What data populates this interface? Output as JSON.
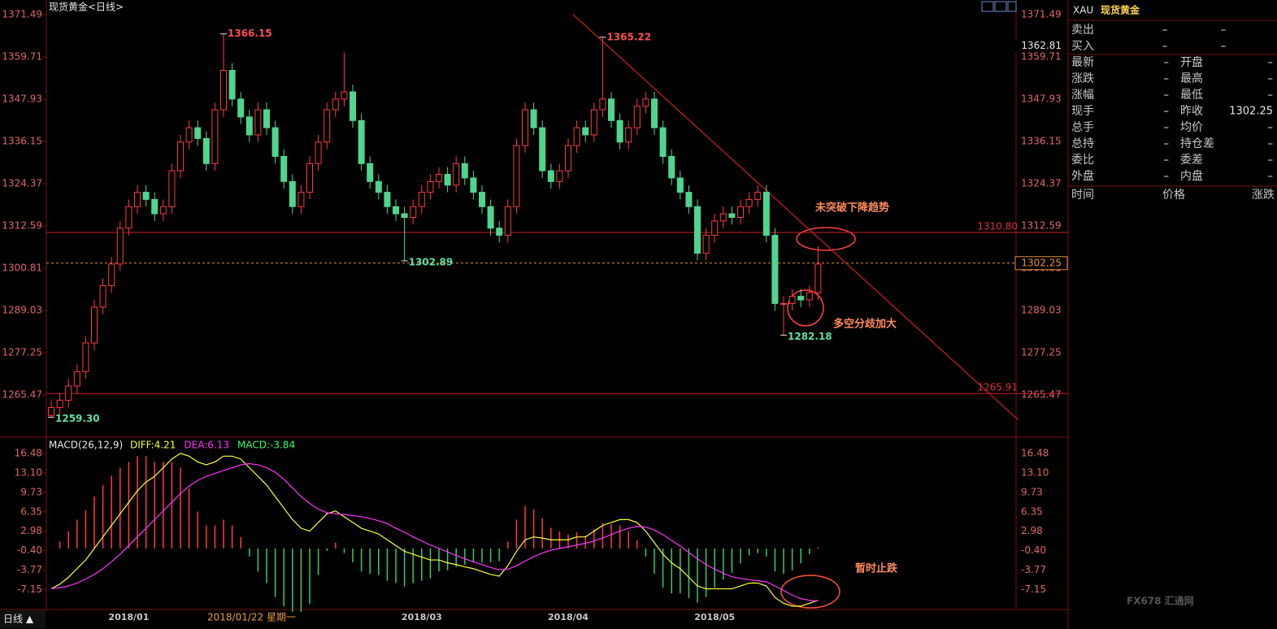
{
  "chart_data": [
    {
      "type": "candlestick",
      "title": "现货黄金<日线>",
      "categories": [
        null,
        null,
        null,
        null,
        null,
        null,
        null,
        null,
        null,
        "2018/01",
        null,
        null,
        null,
        null,
        null,
        null,
        null,
        null,
        null,
        null,
        null,
        null,
        null,
        null,
        null,
        null,
        null,
        null,
        null,
        null,
        null,
        null,
        null,
        null,
        null,
        null,
        null,
        null,
        null,
        null,
        null,
        null,
        null,
        "2018/03",
        null,
        null,
        null,
        null,
        null,
        null,
        null,
        null,
        null,
        null,
        null,
        null,
        null,
        null,
        null,
        null,
        "2018/04",
        null,
        null,
        null,
        null,
        null,
        null,
        null,
        null,
        null,
        null,
        null,
        null,
        null,
        null,
        null,
        null,
        "2018/05",
        null,
        null,
        null,
        null,
        null,
        null,
        null,
        null,
        null,
        null,
        null,
        null
      ],
      "cursor_date": "2018/01/22 星期一",
      "open": [
        1259.8,
        1262,
        1264,
        1268,
        1272,
        1280,
        1290,
        1296,
        1302,
        1312,
        1318,
        1322,
        1320,
        1316,
        1318,
        1328,
        1336,
        1340,
        1337,
        1330,
        1345,
        1356,
        1348,
        1343,
        1338,
        1345,
        1340,
        1332,
        1325,
        1318,
        1322,
        1330,
        1336,
        1345,
        1348,
        1350,
        1342,
        1330,
        1325,
        1322,
        1318,
        1316,
        1315,
        1318,
        1322,
        1325,
        1327,
        1324,
        1330,
        1326,
        1322,
        1318,
        1312,
        1310,
        1318,
        1335,
        1345,
        1340,
        1328,
        1325,
        1328,
        1335,
        1340,
        1338,
        1345,
        1348,
        1342,
        1336,
        1340,
        1346,
        1348,
        1340,
        1332,
        1326,
        1322,
        1318,
        1305,
        1310,
        1314,
        1316,
        1315,
        1318,
        1320,
        1322,
        1310,
        1291,
        1291,
        1293,
        1292,
        1294
      ],
      "high": [
        1264,
        1266,
        1270,
        1274,
        1282,
        1292,
        1298,
        1304,
        1314,
        1320,
        1324,
        1324,
        1322,
        1320,
        1330,
        1338,
        1342,
        1342,
        1339,
        1347,
        1366.15,
        1358,
        1350,
        1345,
        1347,
        1347,
        1342,
        1334,
        1327,
        1324,
        1332,
        1338,
        1347,
        1350,
        1361,
        1352,
        1344,
        1332,
        1327,
        1324,
        1320,
        1318,
        1320,
        1324,
        1327,
        1329,
        1329,
        1332,
        1332,
        1328,
        1324,
        1320,
        1314,
        1320,
        1337,
        1347,
        1347,
        1342,
        1330,
        1330,
        1337,
        1342,
        1342,
        1347,
        1365.22,
        1350,
        1344,
        1342,
        1348,
        1350,
        1350,
        1342,
        1334,
        1328,
        1324,
        1320,
        1312,
        1316,
        1318,
        1318,
        1320,
        1322,
        1324,
        1324,
        1312,
        1293,
        1295,
        1295,
        1296,
        1307
      ],
      "low": [
        1259.3,
        1260,
        1262,
        1266,
        1270,
        1278,
        1288,
        1294,
        1300,
        1310,
        1316,
        1318,
        1314,
        1314,
        1316,
        1326,
        1334,
        1335,
        1328,
        1328,
        1343,
        1346,
        1341,
        1336,
        1336,
        1338,
        1330,
        1323,
        1316,
        1316,
        1320,
        1328,
        1334,
        1343,
        1346,
        1340,
        1328,
        1323,
        1320,
        1316,
        1314,
        1302.89,
        1313,
        1316,
        1320,
        1323,
        1322,
        1322,
        1324,
        1320,
        1316,
        1310,
        1308,
        1308,
        1316,
        1333,
        1338,
        1326,
        1323,
        1323,
        1326,
        1333,
        1336,
        1336,
        1343,
        1340,
        1334,
        1334,
        1338,
        1344,
        1338,
        1330,
        1324,
        1320,
        1316,
        1303,
        1303,
        1308,
        1312,
        1313,
        1313,
        1316,
        1318,
        1308,
        1289,
        1282.18,
        1289,
        1290,
        1290,
        1292
      ],
      "close": [
        1262,
        1264,
        1268,
        1272,
        1280,
        1290,
        1296,
        1302,
        1312,
        1318,
        1322,
        1320,
        1316,
        1318,
        1328,
        1336,
        1340,
        1337,
        1330,
        1345,
        1356,
        1348,
        1343,
        1338,
        1345,
        1340,
        1332,
        1325,
        1318,
        1322,
        1330,
        1336,
        1345,
        1348,
        1350,
        1342,
        1330,
        1325,
        1322,
        1318,
        1316,
        1315,
        1318,
        1322,
        1325,
        1327,
        1324,
        1330,
        1326,
        1322,
        1318,
        1312,
        1310,
        1318,
        1335,
        1345,
        1340,
        1328,
        1325,
        1328,
        1335,
        1340,
        1338,
        1345,
        1348,
        1342,
        1336,
        1340,
        1346,
        1348,
        1340,
        1332,
        1326,
        1322,
        1318,
        1305,
        1310,
        1314,
        1316,
        1315,
        1318,
        1320,
        1322,
        1310,
        1291,
        1291,
        1293,
        1292,
        1294,
        1302
      ],
      "up_color": "#ff3c3c",
      "down_color": "#4fd68e",
      "ylim": [
        1254.4,
        1375.6
      ],
      "yticks": [
        1371.49,
        1359.71,
        1347.93,
        1336.15,
        1324.37,
        1312.59,
        1300.81,
        1289.03,
        1277.25,
        1265.47
      ],
      "price_marks": [
        {
          "value": 1366.15
        },
        {
          "value": 1365.22
        },
        {
          "value": 1302.89
        },
        {
          "value": 1282.18
        },
        {
          "value": 1259.3,
          "label": "1259.30"
        }
      ],
      "hlines": [
        {
          "value": 1310.8,
          "label": "1310.80"
        },
        {
          "value": 1265.91
        }
      ],
      "last_price": 1302.25,
      "cursor_price": 1362.81,
      "trend_line": {
        "x": [
          60.6,
          112.2
        ],
        "y": [
          1371.5,
          1258.6
        ]
      },
      "annotations": [
        "未突破下降趋势",
        "多空分歧加大"
      ]
    },
    {
      "type": "macd",
      "indicator": "MACD(26,12,9)",
      "legend_texts": [
        "DIFF:4.21",
        "DEA:6.13",
        "MACD:-3.84"
      ],
      "ylim": [
        -10.3,
        19.0
      ],
      "yticks": [
        16.48,
        {
          "value": 13.1,
          "label": "13.10"
        },
        9.73,
        6.35,
        2.98,
        {
          "value": -0.4,
          "label": "-0.40"
        },
        -3.77,
        -7.15
      ],
      "series": [
        {
          "color": "#ffff33",
          "values": [
            -7.0,
            -6.2,
            -5.0,
            -3.5,
            -2.0,
            0.0,
            2.0,
            4.0,
            6.0,
            8.0,
            10.0,
            11.5,
            12.5,
            14.0,
            15.5,
            16.5,
            16.0,
            15.0,
            14.5,
            15.0,
            16.0,
            16.0,
            15.5,
            14.0,
            12.5,
            11.0,
            9.0,
            7.0,
            5.0,
            3.5,
            3.0,
            4.5,
            6.0,
            6.5,
            5.5,
            4.5,
            3.5,
            3.0,
            2.5,
            1.5,
            0.5,
            -0.5,
            -1.0,
            -1.5,
            -2.0,
            -2.0,
            -2.5,
            -2.8,
            -3.2,
            -3.5,
            -4.0,
            -4.5,
            -4.8,
            -3.0,
            -0.5,
            1.5,
            2.0,
            1.8,
            1.5,
            1.5,
            1.5,
            2.0,
            2.0,
            3.0,
            4.0,
            4.5,
            5.0,
            5.0,
            4.5,
            3.0,
            1.0,
            -1.0,
            -2.5,
            -3.5,
            -5.0,
            -6.5,
            -7.0,
            -7.0,
            -7.0,
            -7.0,
            -6.5,
            -6.0,
            -6.0,
            -6.5,
            -8.5,
            -9.5,
            -10.0,
            -10.0,
            -9.5,
            -9.0
          ]
        },
        {
          "color": "#ff33ff",
          "values": [
            -7.0,
            -6.8,
            -6.5,
            -6.0,
            -5.3,
            -4.5,
            -3.5,
            -2.3,
            -1.0,
            0.5,
            2.0,
            3.5,
            5.0,
            6.5,
            8.0,
            9.5,
            10.8,
            11.8,
            12.5,
            13.0,
            13.5,
            14.0,
            14.5,
            14.7,
            14.5,
            14.0,
            13.2,
            12.0,
            10.5,
            9.0,
            7.8,
            6.8,
            6.2,
            6.0,
            5.9,
            5.7,
            5.5,
            5.2,
            4.8,
            4.3,
            3.5,
            2.8,
            2.0,
            1.3,
            0.6,
            0.0,
            -0.6,
            -1.2,
            -1.8,
            -2.3,
            -2.8,
            -3.3,
            -3.7,
            -3.6,
            -3.0,
            -2.2,
            -1.4,
            -0.8,
            -0.3,
            0.0,
            0.3,
            0.6,
            0.9,
            1.3,
            1.8,
            2.4,
            3.0,
            3.5,
            3.8,
            3.7,
            3.2,
            2.4,
            1.4,
            0.4,
            -0.7,
            -1.8,
            -2.8,
            -3.6,
            -4.3,
            -4.9,
            -5.2,
            -5.4,
            -5.6,
            -5.8,
            -6.5,
            -7.3,
            -8.1,
            -8.7,
            -9.0,
            -9.1
          ]
        },
        {
          "color": "#33ff66",
          "values": [
            0,
            1.2,
            3.0,
            5.0,
            6.6,
            9.0,
            11.0,
            12.6,
            14.0,
            15.0,
            16.0,
            16.0,
            15.0,
            15.0,
            15.0,
            14.0,
            10.4,
            6.4,
            4.0,
            4.0,
            5.0,
            4.0,
            2.0,
            -1.4,
            -4.0,
            -6.0,
            -8.4,
            -10.0,
            -11.0,
            -11.0,
            -9.6,
            -4.6,
            -0.4,
            1.0,
            -0.8,
            -2.4,
            -4.0,
            -4.4,
            -4.6,
            -5.6,
            -6.0,
            -6.6,
            -6.0,
            -5.6,
            -5.2,
            -4.0,
            -3.8,
            -3.2,
            -2.8,
            -2.4,
            -2.4,
            -2.4,
            -2.2,
            1.2,
            5.0,
            7.4,
            6.8,
            5.2,
            3.6,
            3.0,
            2.4,
            2.8,
            2.2,
            3.4,
            4.4,
            4.2,
            4.0,
            3.0,
            1.4,
            -1.4,
            -4.4,
            -6.8,
            -7.8,
            -7.8,
            -8.6,
            -9.4,
            -8.4,
            -6.8,
            -5.4,
            -4.2,
            -2.6,
            -1.2,
            -0.8,
            -1.4,
            -4.0,
            -4.4,
            -3.8,
            -2.6,
            -1.0,
            0.2
          ]
        }
      ],
      "hist_up_color": "#ff3c3c",
      "hist_down_color": "#33cc66",
      "annotations": [
        "暂时止跌"
      ]
    }
  ],
  "period_button": "日线 ▲",
  "quote_panel": {
    "symbol": "XAU",
    "name": "现货黄金",
    "rows": [
      [
        "卖出",
        "–",
        "–"
      ],
      [
        "买入",
        "–",
        "–"
      ],
      [
        "最新",
        "–",
        "开盘",
        "–"
      ],
      [
        "涨跌",
        "–",
        "最高",
        "–"
      ],
      [
        "涨幅",
        "–",
        "最低",
        "–"
      ],
      [
        "现手",
        "–",
        "昨收",
        "1302.25"
      ],
      [
        "总手",
        "–",
        "均价",
        "–"
      ],
      [
        "总持",
        "–",
        "持仓差",
        "–"
      ],
      [
        "委比",
        "–",
        "委差",
        "–"
      ],
      [
        "外盘",
        "–",
        "内盘",
        "–"
      ]
    ],
    "header": [
      "时间",
      "价格",
      "涨跌"
    ]
  },
  "watermark": "FX678 汇通网"
}
